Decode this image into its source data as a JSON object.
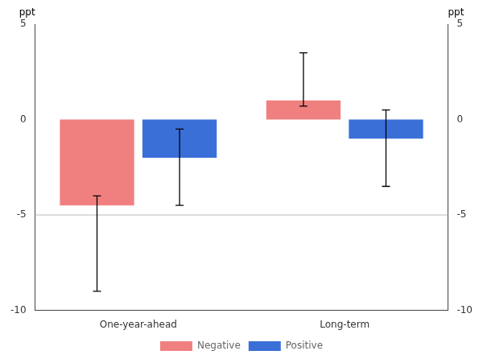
{
  "chart_data": {
    "type": "bar",
    "categories": [
      "One-year-ahead",
      "Long-term"
    ],
    "series": [
      {
        "name": "Negative",
        "color": "#f08080",
        "values": [
          -4.5,
          1.0
        ],
        "error_lower": [
          4.5,
          0.3
        ],
        "error_upper": [
          0.5,
          2.5
        ]
      },
      {
        "name": "Positive",
        "color": "#3a6fd8",
        "values": [
          -2.0,
          -1.0
        ],
        "error_lower": [
          2.5,
          2.5
        ],
        "error_upper": [
          1.5,
          1.5
        ]
      }
    ],
    "ylim": [
      -10,
      5
    ],
    "yticks": [
      -10,
      -5,
      0,
      5
    ],
    "y2lim": [
      -10,
      5
    ],
    "y2ticks": [
      -10,
      -5,
      0,
      5
    ],
    "ylabel": "ppt",
    "y2label": "ppt",
    "reference_line": -5,
    "grid": false,
    "legend": "bottom"
  }
}
